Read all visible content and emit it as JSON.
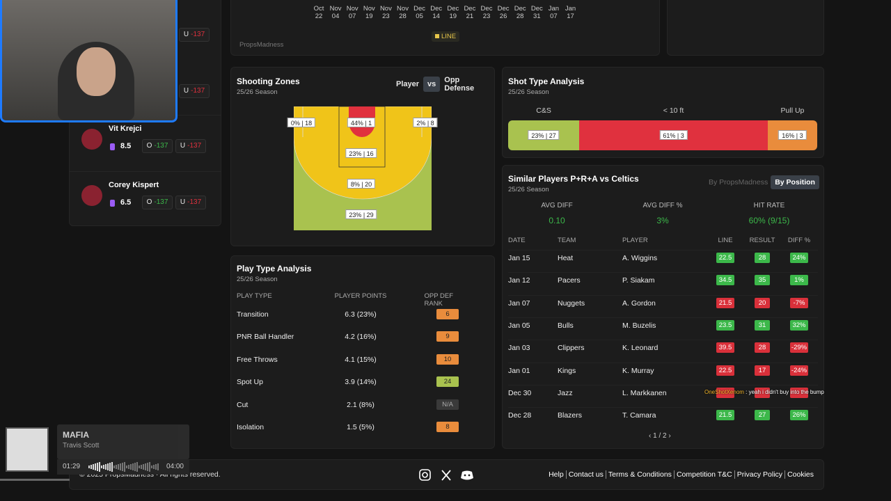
{
  "top_chart": {
    "dates": [
      "Oct 22",
      "Nov 04",
      "Nov 07",
      "Nov 19",
      "Nov 23",
      "Nov 28",
      "Dec 05",
      "Dec 14",
      "Dec 19",
      "Dec 21",
      "Dec 23",
      "Dec 26",
      "Dec 28",
      "Dec 31",
      "Jan 07",
      "Jan 17"
    ],
    "legend": "LINE",
    "brand": "PropsMadness"
  },
  "players_list": {
    "partial_rows": [
      {
        "under": "U",
        "under_odds": "-137"
      },
      {
        "under": "U",
        "under_odds": "-137"
      }
    ],
    "players": [
      {
        "name": "Vit Krejci",
        "line": 8.5,
        "over": "O",
        "over_odds": "-137",
        "under": "U",
        "under_odds": "-137"
      },
      {
        "name": "Corey Kispert",
        "line": 6.5,
        "over": "O",
        "over_odds": "-137",
        "under": "U",
        "under_odds": "-137"
      }
    ]
  },
  "shooting_zones": {
    "title": "Shooting Zones",
    "subtitle": "25/26 Season",
    "toggle": [
      "Player",
      "vs",
      "Opp Defense"
    ],
    "zones": [
      "0% | 18",
      "44% | 1",
      "2% | 8",
      "23% | 16",
      "8% | 20",
      "23% | 29"
    ]
  },
  "shot_type": {
    "title": "Shot Type Analysis",
    "subtitle": "25/26 Season",
    "categories": [
      "C&S",
      "< 10 ft",
      "Pull Up"
    ],
    "values": [
      23,
      61,
      16
    ],
    "value_labels": [
      "23% | 27",
      "61% | 3",
      "16% | 3"
    ],
    "colors": [
      "#a9c24f",
      "#e0313e",
      "#e98c3c"
    ]
  },
  "similar": {
    "title": "Similar Players P+R+A vs Celtics",
    "subtitle": "25/26 Season",
    "tabs": [
      "By PropsMadness",
      "By Position"
    ],
    "stats": [
      {
        "label": "AVG DIFF",
        "value": "0.10"
      },
      {
        "label": "AVG DIFF %",
        "value": "3%"
      },
      {
        "label": "HIT RATE",
        "value": "60% (9/15)"
      }
    ],
    "columns": [
      "DATE",
      "TEAM",
      "PLAYER",
      "LINE",
      "RESULT",
      "DIFF %"
    ],
    "rows": [
      {
        "date": "Jan 15",
        "team": "Heat",
        "player": "A. Wiggins",
        "line": 22.5,
        "result": 28,
        "diff": "24%",
        "hit": true
      },
      {
        "date": "Jan 12",
        "team": "Pacers",
        "player": "P. Siakam",
        "line": 34.5,
        "result": 35,
        "diff": "1%",
        "hit": true
      },
      {
        "date": "Jan 07",
        "team": "Nuggets",
        "player": "A. Gordon",
        "line": 21.5,
        "result": 20,
        "diff": "-7%",
        "hit": false
      },
      {
        "date": "Jan 05",
        "team": "Bulls",
        "player": "M. Buzelis",
        "line": 23.5,
        "result": 31,
        "diff": "32%",
        "hit": true
      },
      {
        "date": "Jan 03",
        "team": "Clippers",
        "player": "K. Leonard",
        "line": 39.5,
        "result": 28,
        "diff": "-29%",
        "hit": false
      },
      {
        "date": "Jan 01",
        "team": "Kings",
        "player": "K. Murray",
        "line": 22.5,
        "result": 17,
        "diff": "-24%",
        "hit": false
      },
      {
        "date": "Dec 30",
        "team": "Jazz",
        "player": "L. Markkanen",
        "hit": false
      },
      {
        "date": "Dec 28",
        "team": "Blazers",
        "player": "T. Camara",
        "line": 21.5,
        "result": 27,
        "diff": "26%",
        "hit": true
      }
    ],
    "pagination": "1 / 2"
  },
  "chat": {
    "user": "OneShotXenom",
    "message": " : yeah i didn't buy into the bump"
  },
  "play_type": {
    "title": "Play Type Analysis",
    "subtitle": "25/26 Season",
    "columns": [
      "PLAY TYPE",
      "PLAYER POINTS",
      "OPP DEF RANK"
    ],
    "rows": [
      {
        "type": "Transition",
        "points": "6.3 (23%)",
        "rank": 6,
        "color": "#e98c3c"
      },
      {
        "type": "PNR Ball Handler",
        "points": "4.2 (16%)",
        "rank": 9,
        "color": "#e98c3c"
      },
      {
        "type": "Free Throws",
        "points": "4.1 (15%)",
        "rank": 10,
        "color": "#e98c3c"
      },
      {
        "type": "Spot Up",
        "points": "3.9 (14%)",
        "rank": 24,
        "color": "#a9c24f"
      },
      {
        "type": "Cut",
        "points": "2.1 (8%)",
        "rank": "N/A",
        "color": "#3a3a3a"
      },
      {
        "type": "Isolation",
        "points": "1.5 (5%)",
        "rank": 8,
        "color": "#e98c3c"
      }
    ]
  },
  "music": {
    "title": "MAFIA",
    "artist": "Travis Scott",
    "elapsed": "01:29",
    "duration": "04:00"
  },
  "footer": {
    "copyright": "© 2025 PropsMadness · All rights reserved.",
    "links": [
      "Help",
      "Contact us",
      "Terms & Conditions",
      "Competition T&C",
      "Privacy Policy",
      "Cookies"
    ]
  }
}
